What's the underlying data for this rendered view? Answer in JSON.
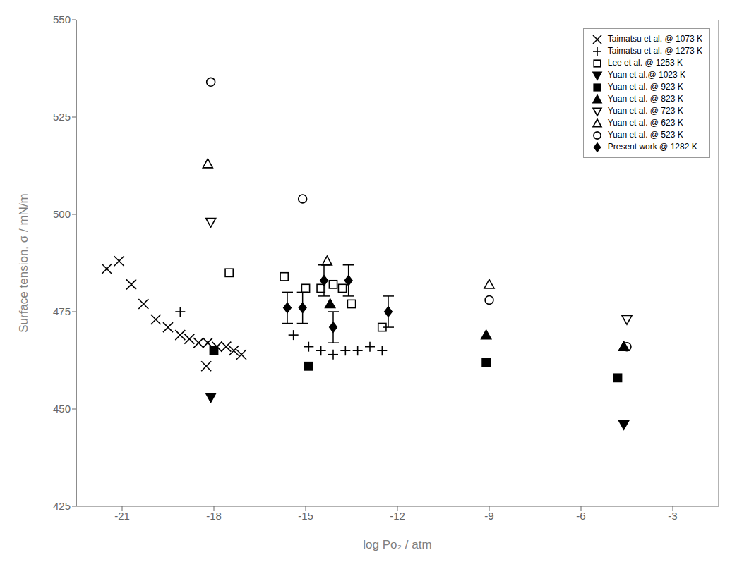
{
  "chart_data": {
    "type": "scatter",
    "xlabel": "log Po₂ / atm",
    "ylabel": "Surface tension, σ / mN/m",
    "xlim": [
      -22.5,
      -1.5
    ],
    "ylim": [
      425,
      550
    ],
    "xticks": [
      -21,
      -18,
      -15,
      -12,
      -9,
      -6,
      -3
    ],
    "yticks": [
      425,
      450,
      475,
      500,
      525,
      550
    ],
    "grid": false,
    "legend": "upper right",
    "series": [
      {
        "name": "Taimatsu et al. @ 1073 K",
        "color": "black",
        "marker": "x",
        "x": [
          -21.5,
          -21.1,
          -20.7,
          -20.3,
          -19.9,
          -19.5,
          -19.1,
          -18.8,
          -18.5,
          -18.2,
          -17.9,
          -17.6,
          -17.35,
          -17.1,
          -18.25
        ],
        "values": [
          486,
          488,
          482,
          477,
          473,
          471,
          469,
          468,
          467,
          467,
          466,
          466,
          465,
          464,
          461
        ]
      },
      {
        "name": "Taimatsu et al. @ 1273 K",
        "color": "black",
        "marker": "plus",
        "x": [
          -19.1,
          -15.4,
          -14.9,
          -14.5,
          -14.1,
          -13.7,
          -13.3,
          -12.9,
          -12.5
        ],
        "values": [
          475,
          469,
          466,
          465,
          464,
          465,
          465,
          466,
          465
        ]
      },
      {
        "name": "Lee et al. @ 1253 K",
        "color": "black",
        "marker": "square",
        "x": [
          -17.5,
          -15.7,
          -15.0,
          -14.5,
          -14.1,
          -13.8,
          -13.5,
          -12.5
        ],
        "values": [
          485,
          484,
          481,
          481,
          482,
          481,
          477,
          471
        ]
      },
      {
        "name": "Yuan et al.@ 1023 K",
        "color": "black",
        "marker": "triangle-down-filled",
        "x": [
          -18.1,
          -4.6
        ],
        "values": [
          453,
          446
        ]
      },
      {
        "name": "Yuan et al. @ 923 K",
        "color": "black",
        "marker": "square-filled",
        "x": [
          -18.0,
          -14.9,
          -9.1,
          -4.8
        ],
        "values": [
          465,
          461,
          462,
          458
        ]
      },
      {
        "name": "Yuan et al. @ 823 K",
        "color": "black",
        "marker": "triangle-up-filled",
        "x": [
          -14.2,
          -9.1,
          -4.6
        ],
        "values": [
          477,
          469,
          466
        ]
      },
      {
        "name": "Yuan et al. @ 723 K",
        "color": "black",
        "marker": "triangle-down",
        "x": [
          -18.1,
          -4.5
        ],
        "values": [
          498,
          473
        ]
      },
      {
        "name": "Yuan et al. @ 623 K",
        "color": "black",
        "marker": "triangle-up",
        "x": [
          -18.2,
          -14.3,
          -9.0,
          -4.6
        ],
        "values": [
          513,
          488,
          482,
          466
        ]
      },
      {
        "name": "Yuan et al. @ 523 K",
        "color": "black",
        "marker": "circle",
        "x": [
          -18.1,
          -15.1,
          -9.0,
          -4.5
        ],
        "values": [
          534,
          504,
          478,
          466
        ]
      },
      {
        "name": "Present work @ 1282 K",
        "color": "black",
        "marker": "diamond-filled",
        "x": [
          -15.6,
          -15.1,
          -14.4,
          -14.1,
          -13.6,
          -12.3
        ],
        "values": [
          476,
          476,
          483,
          471,
          483,
          475
        ],
        "yerr": [
          4,
          4,
          4,
          4,
          4,
          4
        ]
      }
    ]
  }
}
